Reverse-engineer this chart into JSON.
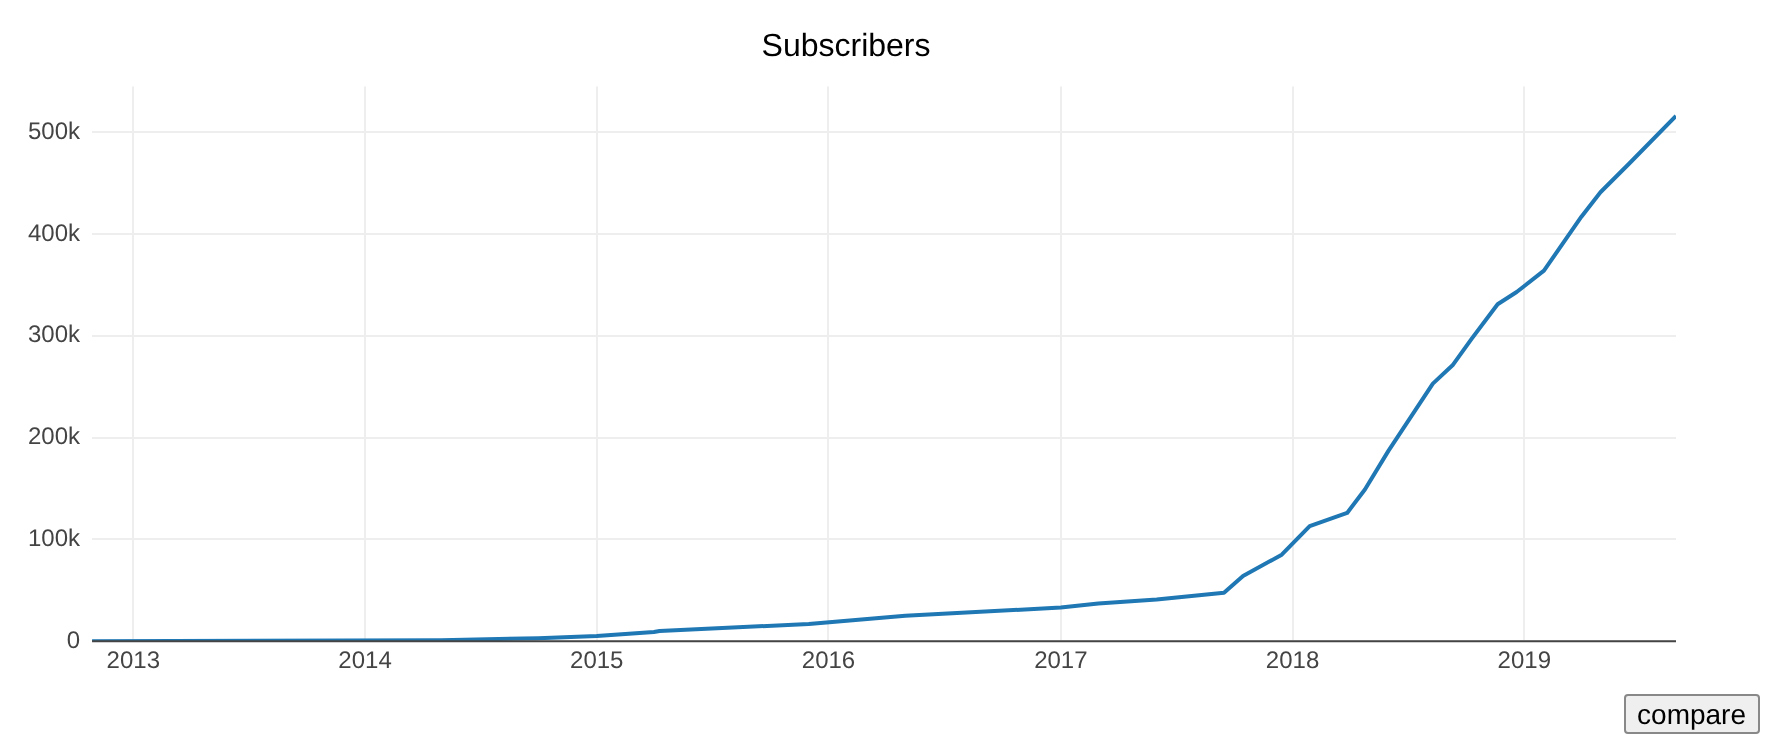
{
  "chart_data": {
    "type": "line",
    "title": "Subscribers",
    "x": [
      "2012-10-28",
      "2014-05-01",
      "2014-10-01",
      "2015-01-01",
      "2015-04-01",
      "2015-04-10",
      "2015-12-01",
      "2016-05-01",
      "2017-01-01",
      "2017-03-01",
      "2017-06-01",
      "2017-09-15",
      "2017-10-15",
      "2017-12-15",
      "2018-01-28",
      "2018-03-28",
      "2018-04-25",
      "2018-06-01",
      "2018-08-10",
      "2018-09-10",
      "2018-10-10",
      "2018-11-20",
      "2018-12-20",
      "2019-02-01",
      "2019-04-01",
      "2019-05-01",
      "2019-06-15",
      "2019-08-28"
    ],
    "series": [
      {
        "color": "#1f77b4",
        "values": [
          0,
          1000,
          3000,
          5000,
          9000,
          10000,
          17000,
          25000,
          33000,
          37000,
          41000,
          47500,
          64000,
          85000,
          113000,
          126000,
          149000,
          187000,
          253000,
          271000,
          297000,
          331000,
          343000,
          364000,
          417000,
          441000,
          469000,
          516000
        ]
      }
    ],
    "xlim": [
      "2012-10-28",
      "2019-08-28"
    ],
    "xticks": [
      "2013",
      "2014",
      "2015",
      "2016",
      "2017",
      "2018",
      "2019"
    ],
    "ylim": [
      0,
      545000
    ],
    "yticks": [
      {
        "value": 0,
        "label": "0"
      },
      {
        "value": 100000,
        "label": "100k"
      },
      {
        "value": 200000,
        "label": "200k"
      },
      {
        "value": 300000,
        "label": "300k"
      },
      {
        "value": 400000,
        "label": "400k"
      },
      {
        "value": 500000,
        "label": "500k"
      }
    ],
    "grid": true,
    "legend": false,
    "marker": "none",
    "line_style": "solid",
    "annotations": [
      "compare"
    ]
  }
}
